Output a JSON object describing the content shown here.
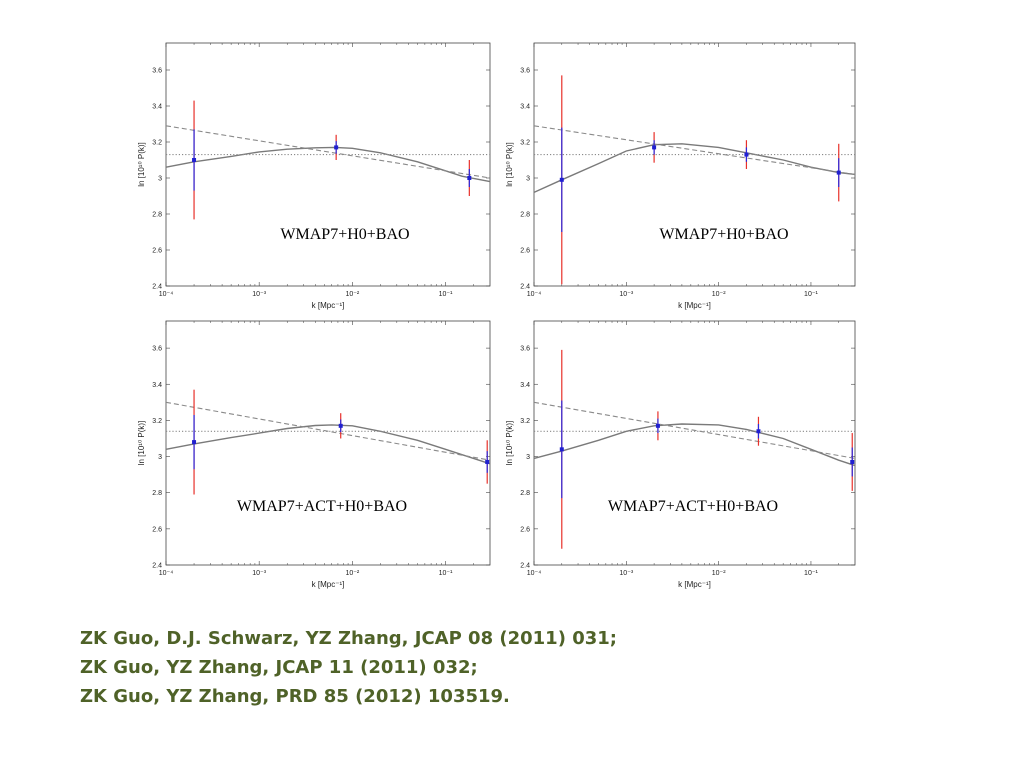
{
  "chart_data": [
    {
      "type": "line",
      "annotation": "WMAP7+H0+BAO",
      "xlabel": "k [Mpc⁻¹]",
      "ylabel": "ln [10¹⁰ P(k)]",
      "xscale": "log",
      "xlim": [
        0.0001,
        0.3
      ],
      "ylim": [
        2.4,
        3.75
      ],
      "x_ticks": [
        "10⁻⁴",
        "10⁻³",
        "10⁻²",
        "10⁻¹"
      ],
      "y_ticks": [
        "2.4",
        "2.6",
        "2.8",
        "3",
        "3.2",
        "3.4",
        "3.6"
      ],
      "grid": false,
      "series": [
        {
          "style": "solid",
          "x": [
            0.0001,
            0.0002,
            0.0005,
            0.001,
            0.002,
            0.004,
            0.0065,
            0.01,
            0.02,
            0.05,
            0.1,
            0.15,
            0.3
          ],
          "y": [
            3.06,
            3.09,
            3.12,
            3.145,
            3.16,
            3.168,
            3.17,
            3.165,
            3.14,
            3.09,
            3.04,
            3.01,
            2.98
          ]
        },
        {
          "style": "dashed",
          "x": [
            0.0001,
            0.3
          ],
          "y": [
            3.29,
            3.0
          ]
        },
        {
          "style": "dotted",
          "x": [
            0.0001,
            0.3
          ],
          "y": [
            3.13,
            3.13
          ]
        }
      ],
      "points": [
        {
          "x": 0.0002,
          "y": 3.1,
          "err_red": 0.33,
          "err_blue": 0.17
        },
        {
          "x": 0.0067,
          "y": 3.17,
          "err_red": 0.07,
          "err_blue": 0.035
        },
        {
          "x": 0.18,
          "y": 3.0,
          "err_red": 0.1,
          "err_blue": 0.05
        }
      ]
    },
    {
      "type": "line",
      "annotation": "WMAP7+H0+BAO",
      "xlabel": "k [Mpc⁻¹]",
      "ylabel": "ln [10¹⁰ P(k)]",
      "xscale": "log",
      "xlim": [
        0.0001,
        0.3
      ],
      "ylim": [
        2.4,
        3.75
      ],
      "x_ticks": [
        "10⁻⁴",
        "10⁻³",
        "10⁻²",
        "10⁻¹"
      ],
      "y_ticks": [
        "2.4",
        "2.6",
        "2.8",
        "3",
        "3.2",
        "3.4",
        "3.6"
      ],
      "grid": false,
      "series": [
        {
          "style": "solid",
          "x": [
            0.0001,
            0.0002,
            0.0005,
            0.001,
            0.002,
            0.004,
            0.01,
            0.02,
            0.05,
            0.1,
            0.2,
            0.3
          ],
          "y": [
            2.92,
            2.99,
            3.08,
            3.15,
            3.185,
            3.19,
            3.17,
            3.14,
            3.1,
            3.06,
            3.03,
            3.02
          ]
        },
        {
          "style": "dashed",
          "x": [
            0.0001,
            0.3
          ],
          "y": [
            3.29,
            3.02
          ]
        },
        {
          "style": "dotted",
          "x": [
            0.0001,
            0.3
          ],
          "y": [
            3.13,
            3.13
          ]
        }
      ],
      "points": [
        {
          "x": 0.0002,
          "y": 2.99,
          "err_red": 0.58,
          "err_blue": 0.29
        },
        {
          "x": 0.002,
          "y": 3.17,
          "err_red": 0.085,
          "err_blue": 0.04
        },
        {
          "x": 0.02,
          "y": 3.13,
          "err_red": 0.08,
          "err_blue": 0.04
        },
        {
          "x": 0.2,
          "y": 3.03,
          "err_red": 0.16,
          "err_blue": 0.08
        }
      ]
    },
    {
      "type": "line",
      "annotation": "WMAP7+ACT+H0+BAO",
      "xlabel": "k [Mpc⁻¹]",
      "ylabel": "ln [10¹⁰ P(k)]",
      "xscale": "log",
      "xlim": [
        0.0001,
        0.3
      ],
      "ylim": [
        2.4,
        3.75
      ],
      "x_ticks": [
        "10⁻⁴",
        "10⁻³",
        "10⁻²",
        "10⁻¹"
      ],
      "y_ticks": [
        "2.4",
        "2.6",
        "2.8",
        "3",
        "3.2",
        "3.4",
        "3.6"
      ],
      "grid": false,
      "series": [
        {
          "style": "solid",
          "x": [
            0.0001,
            0.0002,
            0.0005,
            0.001,
            0.002,
            0.004,
            0.006,
            0.01,
            0.02,
            0.05,
            0.1,
            0.2,
            0.3
          ],
          "y": [
            3.04,
            3.07,
            3.105,
            3.13,
            3.155,
            3.172,
            3.175,
            3.17,
            3.14,
            3.09,
            3.04,
            2.99,
            2.96
          ]
        },
        {
          "style": "dashed",
          "x": [
            0.0001,
            0.3
          ],
          "y": [
            3.3,
            2.98
          ]
        },
        {
          "style": "dotted",
          "x": [
            0.0001,
            0.3
          ],
          "y": [
            3.14,
            3.14
          ]
        }
      ],
      "points": [
        {
          "x": 0.0002,
          "y": 3.08,
          "err_red": 0.29,
          "err_blue": 0.15
        },
        {
          "x": 0.0075,
          "y": 3.17,
          "err_red": 0.07,
          "err_blue": 0.035
        },
        {
          "x": 0.28,
          "y": 2.97,
          "err_red": 0.12,
          "err_blue": 0.06
        }
      ]
    },
    {
      "type": "line",
      "annotation": "WMAP7+ACT+H0+BAO",
      "xlabel": "k [Mpc⁻¹]",
      "ylabel": "ln [10¹⁰ P(k)]",
      "xscale": "log",
      "xlim": [
        0.0001,
        0.3
      ],
      "ylim": [
        2.4,
        3.75
      ],
      "x_ticks": [
        "10⁻⁴",
        "10⁻³",
        "10⁻²",
        "10⁻¹"
      ],
      "y_ticks": [
        "2.4",
        "2.6",
        "2.8",
        "3",
        "3.2",
        "3.4",
        "3.6"
      ],
      "grid": false,
      "series": [
        {
          "style": "solid",
          "x": [
            0.0001,
            0.0002,
            0.0005,
            0.001,
            0.002,
            0.004,
            0.01,
            0.02,
            0.05,
            0.1,
            0.2,
            0.3
          ],
          "y": [
            2.99,
            3.03,
            3.09,
            3.14,
            3.17,
            3.18,
            3.175,
            3.15,
            3.1,
            3.04,
            2.98,
            2.95
          ]
        },
        {
          "style": "dashed",
          "x": [
            0.0001,
            0.3
          ],
          "y": [
            3.3,
            2.99
          ]
        },
        {
          "style": "dotted",
          "x": [
            0.0001,
            0.3
          ],
          "y": [
            3.14,
            3.14
          ]
        }
      ],
      "points": [
        {
          "x": 0.0002,
          "y": 3.04,
          "err_red": 0.55,
          "err_blue": 0.27
        },
        {
          "x": 0.0022,
          "y": 3.17,
          "err_red": 0.08,
          "err_blue": 0.04
        },
        {
          "x": 0.027,
          "y": 3.14,
          "err_red": 0.08,
          "err_blue": 0.04
        },
        {
          "x": 0.28,
          "y": 2.97,
          "err_red": 0.16,
          "err_blue": 0.08
        }
      ]
    }
  ],
  "colors": {
    "curve": "#888888",
    "error_outer": "#e8302a",
    "error_inner": "#2a2ae0",
    "point": "#2020d0",
    "axes": "#444444",
    "reference_text": "#4f6228"
  },
  "references": [
    "ZK Guo, D.J. Schwarz, YZ Zhang, JCAP 08 (2011) 031;",
    "ZK Guo, YZ Zhang, JCAP 11 (2011) 032;",
    "ZK Guo, YZ Zhang, PRD 85 (2012) 103519."
  ]
}
